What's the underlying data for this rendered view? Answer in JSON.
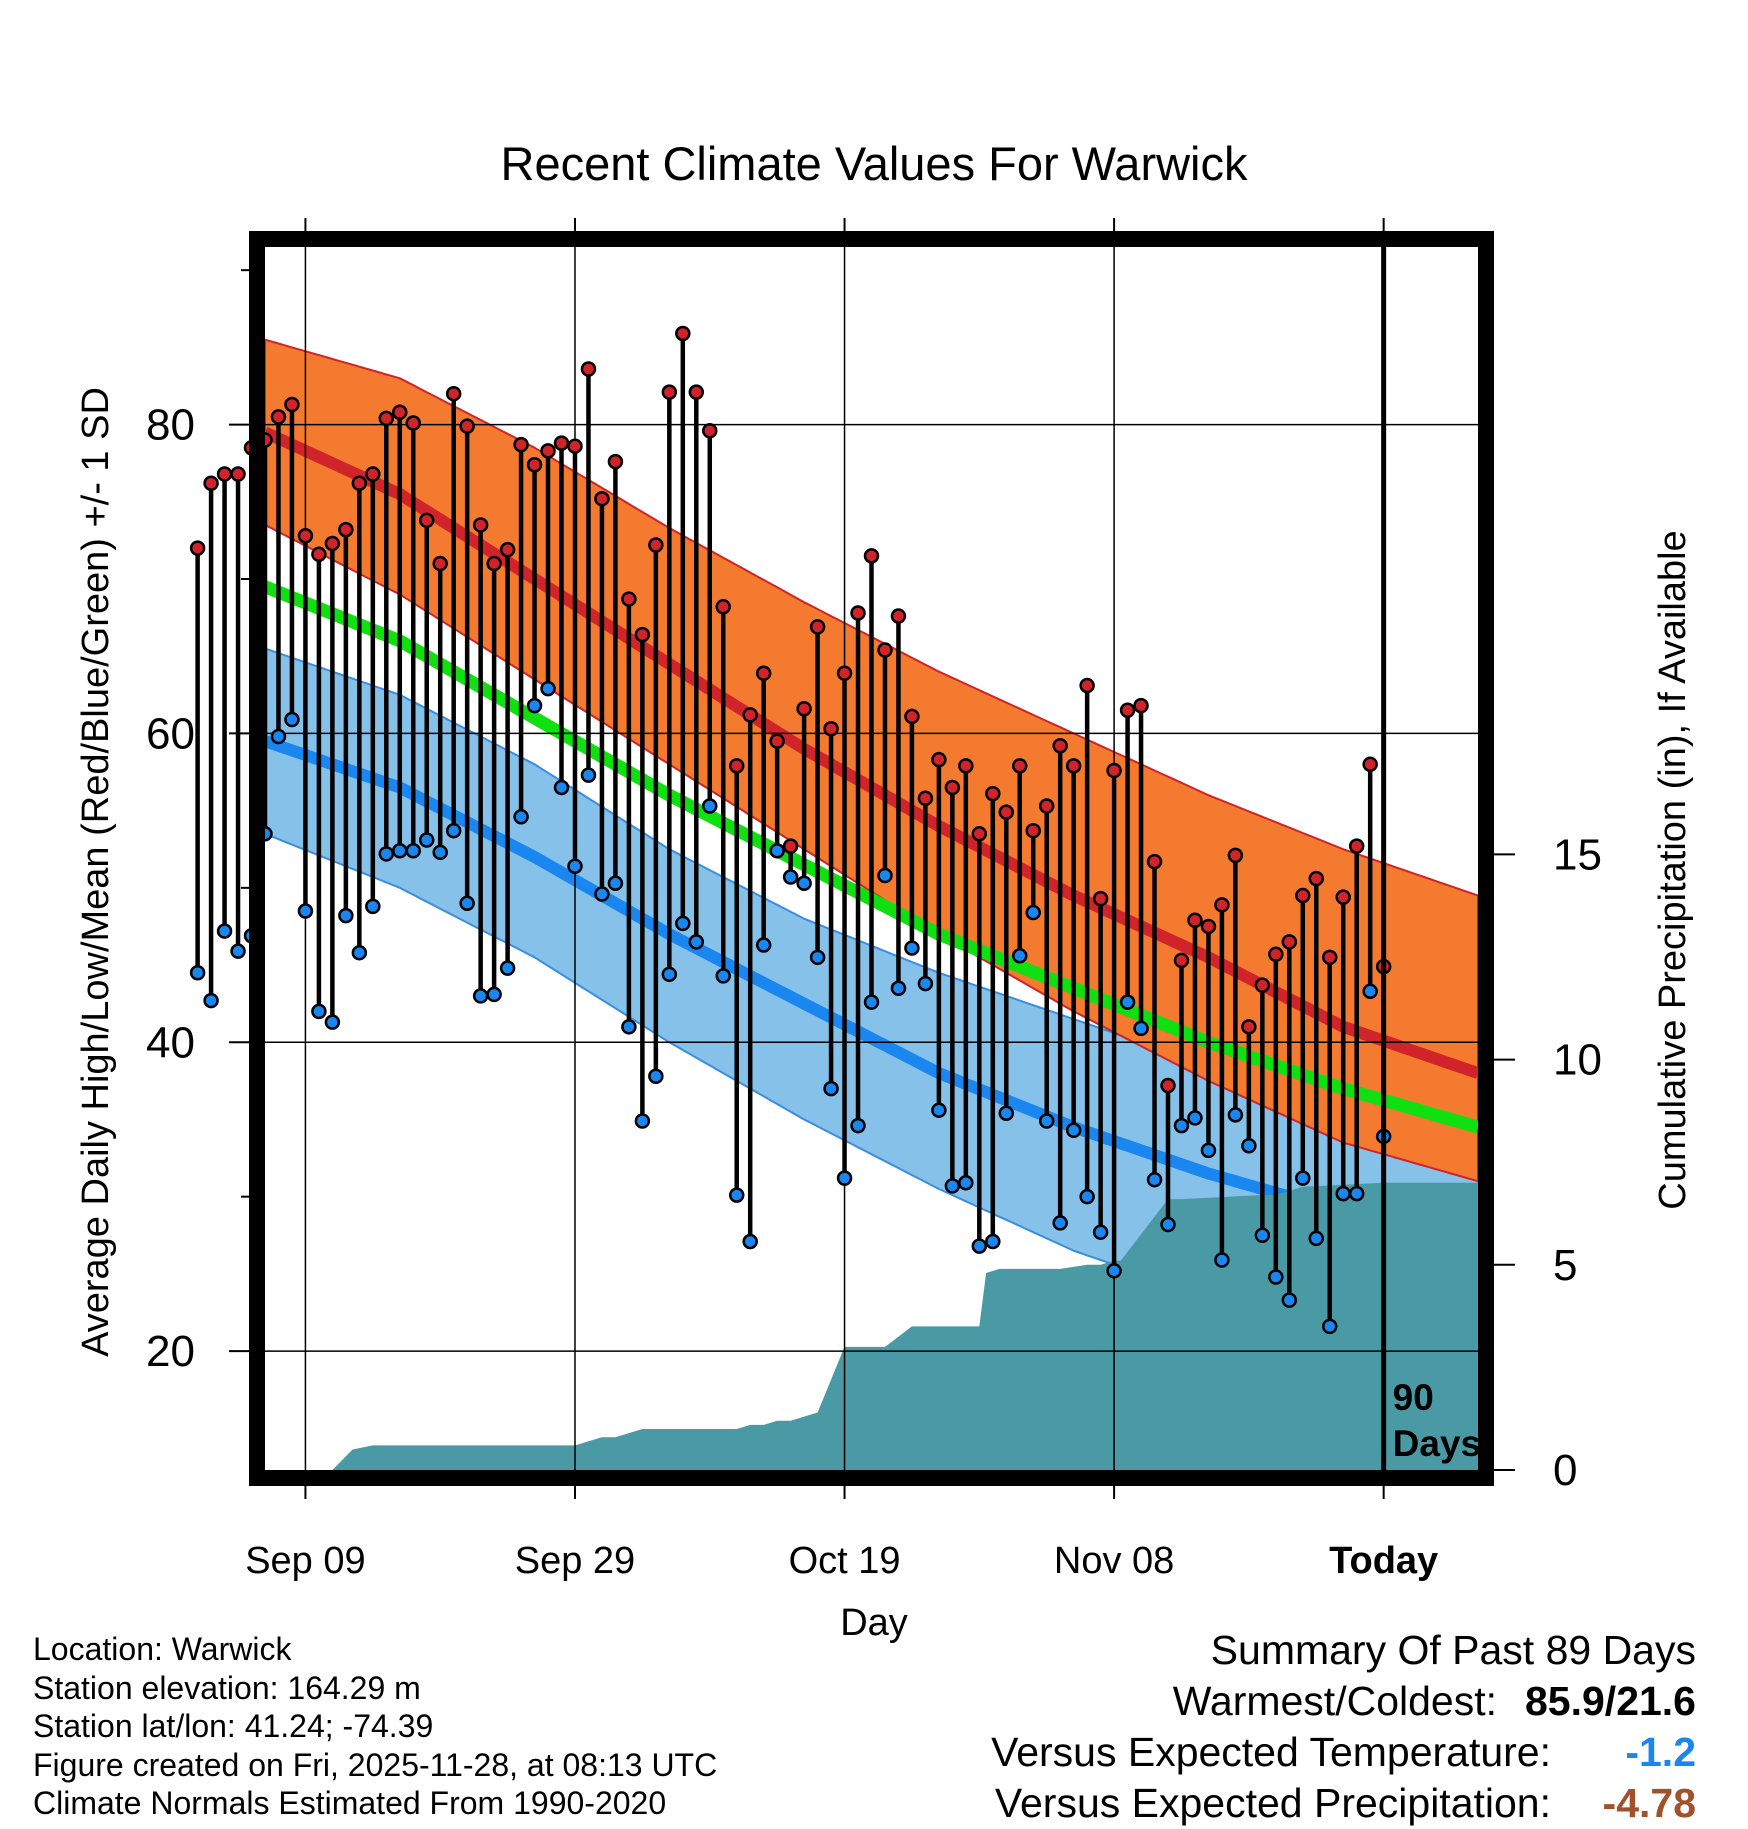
{
  "chart_data": {
    "type": "line",
    "title": "Recent Climate Values For Warwick",
    "xlabel": "Day",
    "ylabel": "Average Daily High/Low/Mean (Red/Blue/Green) +/- 1 SD",
    "y2label": "Cumulative Precipitation (in), If Available",
    "x_range_days": [
      -83,
      7
    ],
    "ylim": [
      12.3,
      91.5
    ],
    "y2lim": [
      0,
      29.8
    ],
    "x_ticks": [
      {
        "day": -80,
        "label": "Sep 09"
      },
      {
        "day": -60,
        "label": "Sep 29"
      },
      {
        "day": -40,
        "label": "Oct 19"
      },
      {
        "day": -20,
        "label": "Nov 08"
      },
      {
        "day": 0,
        "label": "Today"
      }
    ],
    "y_ticks": [
      20,
      40,
      60,
      80
    ],
    "y2_ticks": [
      0,
      5,
      10,
      15
    ],
    "today_label": "90\nDays",
    "colors": {
      "high_band": "#f47a30",
      "high_line": "#d0232a",
      "low_band": "#85c1e9",
      "low_line": "#1a86f0",
      "mean_line": "#10e010",
      "precip": "#4a9aa6",
      "obs_high_dot": "#d0232a",
      "obs_low_dot": "#1a86f0"
    },
    "normals": {
      "x": [
        -83,
        -73,
        -63,
        -53,
        -43,
        -33,
        -23,
        -13,
        -3,
        7
      ],
      "high_upper": [
        85.5,
        83.0,
        78.5,
        73.3,
        68.5,
        64.0,
        60.0,
        56.0,
        52.5,
        49.5
      ],
      "high_mean": [
        79.5,
        75.5,
        70.0,
        64.5,
        59.0,
        54.0,
        49.5,
        45.5,
        41.0,
        38.0
      ],
      "high_lower": [
        73.5,
        69.0,
        63.5,
        58.0,
        52.5,
        47.0,
        42.0,
        37.5,
        33.5,
        31.0
      ],
      "mean": [
        69.5,
        66.0,
        61.0,
        56.0,
        51.5,
        47.0,
        43.5,
        40.0,
        37.0,
        34.5
      ],
      "low_upper": [
        65.5,
        62.5,
        58.0,
        52.5,
        48.0,
        44.5,
        41.5,
        38.5,
        36.5,
        35.0
      ],
      "low_mean": [
        59.5,
        56.5,
        52.0,
        47.0,
        42.5,
        38.0,
        34.5,
        31.5,
        29.0,
        27.0
      ],
      "low_lower": [
        53.5,
        50.0,
        45.5,
        40.0,
        35.0,
        30.5,
        26.5,
        23.5,
        21.0,
        19.0
      ]
    },
    "observed": {
      "high": [
        72.0,
        76.2,
        76.8,
        76.8,
        78.5,
        79.0,
        80.5,
        81.3,
        72.8,
        71.6,
        72.3,
        73.2,
        76.2,
        76.8,
        80.4,
        80.8,
        80.1,
        73.8,
        71.0,
        82.0,
        79.9,
        73.5,
        71.0,
        71.9,
        78.7,
        77.4,
        78.3,
        78.8,
        78.6,
        83.6,
        75.2,
        77.6,
        68.7,
        66.4,
        72.2,
        82.1,
        85.9,
        82.1,
        79.6,
        68.2,
        57.9,
        61.2,
        63.9,
        59.5,
        52.7,
        61.6,
        66.9,
        60.3,
        63.9,
        67.8,
        71.5,
        65.4,
        67.6,
        61.1,
        55.8,
        58.3,
        56.5,
        57.9,
        53.5,
        56.1,
        54.9,
        57.9,
        53.7,
        55.3,
        59.2,
        57.9,
        63.1,
        49.3,
        57.6,
        61.5,
        61.8,
        51.7,
        37.2,
        45.3,
        47.9,
        47.5,
        48.9,
        52.1,
        41.0,
        43.7,
        45.7,
        46.5,
        49.5,
        50.6,
        45.5,
        49.4,
        52.7,
        58.0,
        44.9
      ],
      "low": [
        44.5,
        42.7,
        47.2,
        45.9,
        46.9,
        53.5,
        59.8,
        60.9,
        48.5,
        42.0,
        41.3,
        48.2,
        45.8,
        48.8,
        52.2,
        52.4,
        52.4,
        53.1,
        52.3,
        53.7,
        49.0,
        43.0,
        43.1,
        44.8,
        54.6,
        61.8,
        62.9,
        56.5,
        51.4,
        57.3,
        49.6,
        50.3,
        41.0,
        34.9,
        37.8,
        44.4,
        47.7,
        46.5,
        55.3,
        44.3,
        30.1,
        27.1,
        46.3,
        52.4,
        50.7,
        50.3,
        45.5,
        37.0,
        31.2,
        34.6,
        42.6,
        50.8,
        43.5,
        46.1,
        43.8,
        35.6,
        30.7,
        30.9,
        26.8,
        27.1,
        35.4,
        45.6,
        48.4,
        34.9,
        28.3,
        34.3,
        30.0,
        27.7,
        25.2,
        42.6,
        40.9,
        31.1,
        28.2,
        34.6,
        35.1,
        33.0,
        25.9,
        35.3,
        33.3,
        27.5,
        24.8,
        23.3,
        31.2,
        27.3,
        21.6,
        30.2,
        30.2,
        43.3,
        33.9
      ]
    },
    "precip_cumulative": {
      "x": [
        -83,
        -78,
        -76.5,
        -75,
        -70,
        -65,
        -60,
        -58,
        -57,
        -56,
        -55,
        -50,
        -48,
        -47,
        -46,
        -45,
        -44,
        -42,
        -40,
        -39,
        -38,
        -37,
        -35,
        -30,
        -29.5,
        -28.5,
        -24,
        -22,
        -21,
        -20,
        -19.5,
        -16,
        -15,
        -9,
        -8,
        -7,
        -6,
        0,
        7
      ],
      "y": [
        0,
        0,
        0.5,
        0.6,
        0.6,
        0.6,
        0.6,
        0.8,
        0.8,
        0.9,
        1.0,
        1.0,
        1.0,
        1.1,
        1.1,
        1.2,
        1.2,
        1.4,
        3.0,
        3.0,
        3.0,
        3.0,
        3.5,
        3.5,
        4.8,
        4.9,
        4.9,
        5.0,
        5.0,
        5.1,
        5.1,
        6.6,
        6.6,
        6.7,
        6.7,
        6.8,
        6.9,
        7.0,
        7.0
      ]
    }
  },
  "info": {
    "location": "Location: Warwick",
    "elevation": "Station elevation: 164.29 m",
    "latlon": "Station lat/lon: 41.24; -74.39",
    "created": "Figure created on Fri, 2025-11-28, at 08:13 UTC",
    "normals": "Climate Normals Estimated From 1990-2020"
  },
  "summary": {
    "title": "Summary Of Past 89 Days",
    "warm_cold_label": "Warmest/Coldest:",
    "warm_cold_value": "85.9/21.6",
    "temp_label": "Versus Expected Temperature:",
    "temp_value": "-1.2",
    "temp_color": "#1a86f0",
    "precip_label": "Versus Expected Precipitation:",
    "precip_value": "-4.78",
    "precip_color": "#a0522d"
  }
}
